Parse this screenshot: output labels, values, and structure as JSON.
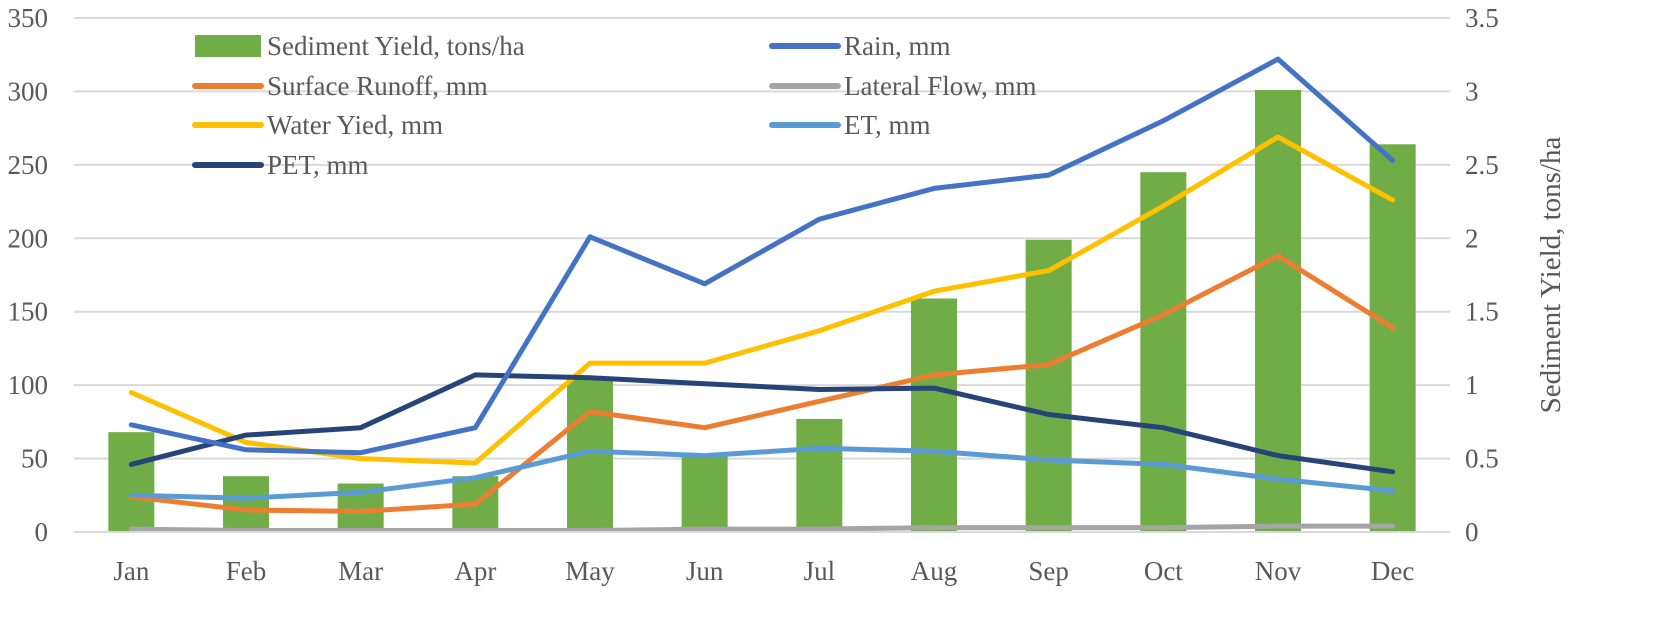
{
  "chart_data": {
    "type": "bar+line",
    "categories": [
      "Jan",
      "Feb",
      "Mar",
      "Apr",
      "May",
      "Jun",
      "Jul",
      "Aug",
      "Sep",
      "Oct",
      "Nov",
      "Dec"
    ],
    "bar_series": {
      "name": "Sediment Yield, tons/ha",
      "color": "#70ad47",
      "axis": "right",
      "values": [
        0.68,
        0.38,
        0.33,
        0.38,
        1.05,
        0.52,
        0.77,
        1.59,
        1.99,
        2.45,
        3.01,
        2.64
      ]
    },
    "line_series": [
      {
        "name": "Surface Runoff, mm",
        "color": "#ed7d31",
        "values": [
          24,
          15,
          14,
          19,
          82,
          71,
          89,
          107,
          114,
          148,
          188,
          139
        ]
      },
      {
        "name": "Water Yied, mm",
        "color": "#ffc000",
        "values": [
          95,
          61,
          50,
          47,
          115,
          115,
          137,
          164,
          178,
          222,
          269,
          226
        ]
      },
      {
        "name": "PET, mm",
        "color": "#264478",
        "values": [
          46,
          66,
          71,
          107,
          105,
          101,
          97,
          98,
          80,
          71,
          52,
          41
        ]
      },
      {
        "name": "Rain, mm",
        "color": "#4472c4",
        "values": [
          73,
          56,
          54,
          71,
          201,
          169,
          213,
          234,
          243,
          280,
          322,
          253
        ]
      },
      {
        "name": "Lateral Flow, mm",
        "color": "#a5a5a5",
        "values": [
          2,
          1,
          1,
          1,
          1,
          2,
          2,
          3,
          3,
          3,
          4,
          4
        ]
      },
      {
        "name": "ET, mm",
        "color": "#5b9bd5",
        "values": [
          25,
          23,
          27,
          37,
          55,
          52,
          57,
          55,
          49,
          46,
          36,
          28
        ]
      }
    ],
    "left_axis": {
      "ylim": [
        0,
        350
      ],
      "ticks": [
        "0",
        "50",
        "100",
        "150",
        "200",
        "250",
        "300",
        "350"
      ],
      "label": ""
    },
    "right_axis": {
      "ylim": [
        0,
        3.5
      ],
      "ticks": [
        "0",
        "0.5",
        "1",
        "1.5",
        "2",
        "2.5",
        "3",
        "3.5"
      ],
      "label": "Sediment Yield, tons/ha"
    },
    "grid": true,
    "legend": {
      "placement": "top-left, inside plot, two columns",
      "entries": [
        {
          "name": "Sediment Yield, tons/ha",
          "kind": "bar",
          "color": "#70ad47"
        },
        {
          "name": "Rain, mm",
          "kind": "line",
          "color": "#4472c4"
        },
        {
          "name": "Surface Runoff, mm",
          "kind": "line",
          "color": "#ed7d31"
        },
        {
          "name": "Lateral Flow, mm",
          "kind": "line",
          "color": "#a5a5a5"
        },
        {
          "name": "Water Yied, mm",
          "kind": "line",
          "color": "#ffc000"
        },
        {
          "name": "ET, mm",
          "kind": "line",
          "color": "#5b9bd5"
        },
        {
          "name": "PET, mm",
          "kind": "line",
          "color": "#264478"
        }
      ]
    }
  }
}
